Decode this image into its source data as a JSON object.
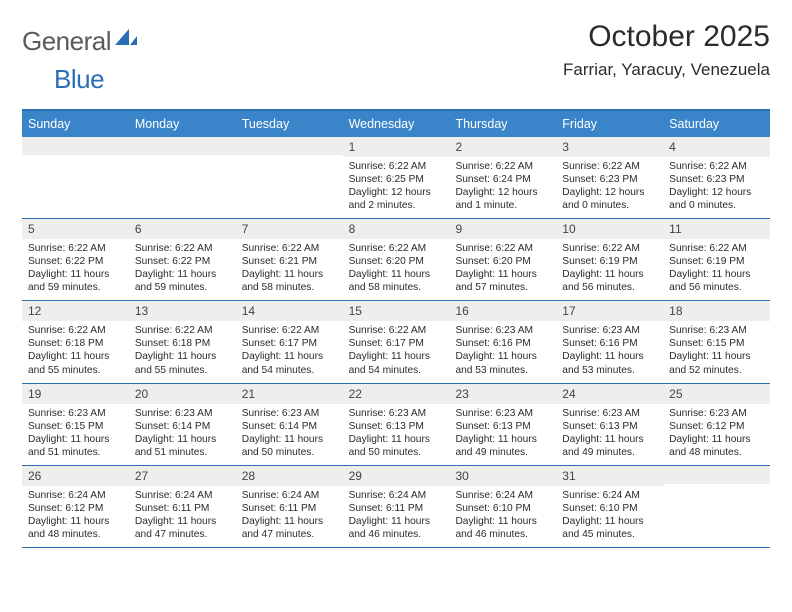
{
  "logo": {
    "word1": "General",
    "word2": "Blue"
  },
  "title": "October 2025",
  "location": "Farriar, Yaracuy, Venezuela",
  "colors": {
    "accent": "#2a6fb5",
    "header_bg": "#3a85c9",
    "daynum_bg": "#eeeeee",
    "text": "#2b2b2b",
    "logo_gray": "#5a5a5a"
  },
  "days_of_week": [
    "Sunday",
    "Monday",
    "Tuesday",
    "Wednesday",
    "Thursday",
    "Friday",
    "Saturday"
  ],
  "weeks": [
    [
      {
        "n": "",
        "lines": []
      },
      {
        "n": "",
        "lines": []
      },
      {
        "n": "",
        "lines": []
      },
      {
        "n": "1",
        "lines": [
          "Sunrise: 6:22 AM",
          "Sunset: 6:25 PM",
          "Daylight: 12 hours and 2 minutes."
        ]
      },
      {
        "n": "2",
        "lines": [
          "Sunrise: 6:22 AM",
          "Sunset: 6:24 PM",
          "Daylight: 12 hours and 1 minute."
        ]
      },
      {
        "n": "3",
        "lines": [
          "Sunrise: 6:22 AM",
          "Sunset: 6:23 PM",
          "Daylight: 12 hours and 0 minutes."
        ]
      },
      {
        "n": "4",
        "lines": [
          "Sunrise: 6:22 AM",
          "Sunset: 6:23 PM",
          "Daylight: 12 hours and 0 minutes."
        ]
      }
    ],
    [
      {
        "n": "5",
        "lines": [
          "Sunrise: 6:22 AM",
          "Sunset: 6:22 PM",
          "Daylight: 11 hours and 59 minutes."
        ]
      },
      {
        "n": "6",
        "lines": [
          "Sunrise: 6:22 AM",
          "Sunset: 6:22 PM",
          "Daylight: 11 hours and 59 minutes."
        ]
      },
      {
        "n": "7",
        "lines": [
          "Sunrise: 6:22 AM",
          "Sunset: 6:21 PM",
          "Daylight: 11 hours and 58 minutes."
        ]
      },
      {
        "n": "8",
        "lines": [
          "Sunrise: 6:22 AM",
          "Sunset: 6:20 PM",
          "Daylight: 11 hours and 58 minutes."
        ]
      },
      {
        "n": "9",
        "lines": [
          "Sunrise: 6:22 AM",
          "Sunset: 6:20 PM",
          "Daylight: 11 hours and 57 minutes."
        ]
      },
      {
        "n": "10",
        "lines": [
          "Sunrise: 6:22 AM",
          "Sunset: 6:19 PM",
          "Daylight: 11 hours and 56 minutes."
        ]
      },
      {
        "n": "11",
        "lines": [
          "Sunrise: 6:22 AM",
          "Sunset: 6:19 PM",
          "Daylight: 11 hours and 56 minutes."
        ]
      }
    ],
    [
      {
        "n": "12",
        "lines": [
          "Sunrise: 6:22 AM",
          "Sunset: 6:18 PM",
          "Daylight: 11 hours and 55 minutes."
        ]
      },
      {
        "n": "13",
        "lines": [
          "Sunrise: 6:22 AM",
          "Sunset: 6:18 PM",
          "Daylight: 11 hours and 55 minutes."
        ]
      },
      {
        "n": "14",
        "lines": [
          "Sunrise: 6:22 AM",
          "Sunset: 6:17 PM",
          "Daylight: 11 hours and 54 minutes."
        ]
      },
      {
        "n": "15",
        "lines": [
          "Sunrise: 6:22 AM",
          "Sunset: 6:17 PM",
          "Daylight: 11 hours and 54 minutes."
        ]
      },
      {
        "n": "16",
        "lines": [
          "Sunrise: 6:23 AM",
          "Sunset: 6:16 PM",
          "Daylight: 11 hours and 53 minutes."
        ]
      },
      {
        "n": "17",
        "lines": [
          "Sunrise: 6:23 AM",
          "Sunset: 6:16 PM",
          "Daylight: 11 hours and 53 minutes."
        ]
      },
      {
        "n": "18",
        "lines": [
          "Sunrise: 6:23 AM",
          "Sunset: 6:15 PM",
          "Daylight: 11 hours and 52 minutes."
        ]
      }
    ],
    [
      {
        "n": "19",
        "lines": [
          "Sunrise: 6:23 AM",
          "Sunset: 6:15 PM",
          "Daylight: 11 hours and 51 minutes."
        ]
      },
      {
        "n": "20",
        "lines": [
          "Sunrise: 6:23 AM",
          "Sunset: 6:14 PM",
          "Daylight: 11 hours and 51 minutes."
        ]
      },
      {
        "n": "21",
        "lines": [
          "Sunrise: 6:23 AM",
          "Sunset: 6:14 PM",
          "Daylight: 11 hours and 50 minutes."
        ]
      },
      {
        "n": "22",
        "lines": [
          "Sunrise: 6:23 AM",
          "Sunset: 6:13 PM",
          "Daylight: 11 hours and 50 minutes."
        ]
      },
      {
        "n": "23",
        "lines": [
          "Sunrise: 6:23 AM",
          "Sunset: 6:13 PM",
          "Daylight: 11 hours and 49 minutes."
        ]
      },
      {
        "n": "24",
        "lines": [
          "Sunrise: 6:23 AM",
          "Sunset: 6:13 PM",
          "Daylight: 11 hours and 49 minutes."
        ]
      },
      {
        "n": "25",
        "lines": [
          "Sunrise: 6:23 AM",
          "Sunset: 6:12 PM",
          "Daylight: 11 hours and 48 minutes."
        ]
      }
    ],
    [
      {
        "n": "26",
        "lines": [
          "Sunrise: 6:24 AM",
          "Sunset: 6:12 PM",
          "Daylight: 11 hours and 48 minutes."
        ]
      },
      {
        "n": "27",
        "lines": [
          "Sunrise: 6:24 AM",
          "Sunset: 6:11 PM",
          "Daylight: 11 hours and 47 minutes."
        ]
      },
      {
        "n": "28",
        "lines": [
          "Sunrise: 6:24 AM",
          "Sunset: 6:11 PM",
          "Daylight: 11 hours and 47 minutes."
        ]
      },
      {
        "n": "29",
        "lines": [
          "Sunrise: 6:24 AM",
          "Sunset: 6:11 PM",
          "Daylight: 11 hours and 46 minutes."
        ]
      },
      {
        "n": "30",
        "lines": [
          "Sunrise: 6:24 AM",
          "Sunset: 6:10 PM",
          "Daylight: 11 hours and 46 minutes."
        ]
      },
      {
        "n": "31",
        "lines": [
          "Sunrise: 6:24 AM",
          "Sunset: 6:10 PM",
          "Daylight: 11 hours and 45 minutes."
        ]
      },
      {
        "n": "",
        "lines": []
      }
    ]
  ]
}
